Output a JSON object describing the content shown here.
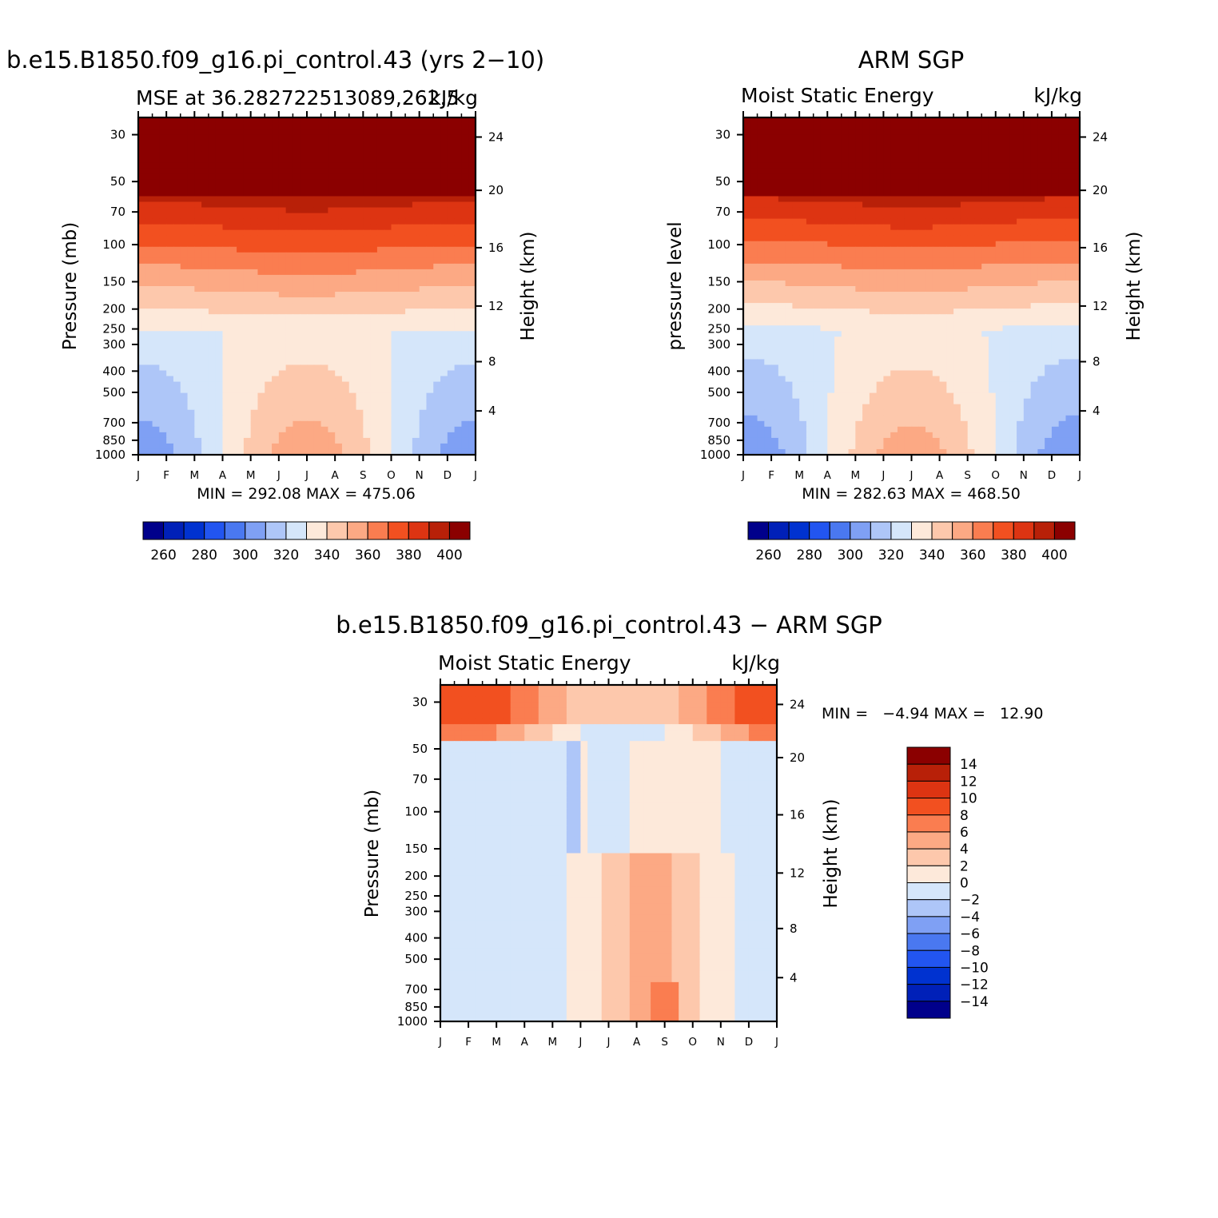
{
  "colors": {
    "mse": [
      "#00008b",
      "#0020b8",
      "#0032d0",
      "#2255f0",
      "#4a78f0",
      "#7fa0f4",
      "#aec6f8",
      "#d5e6fa",
      "#fde9da",
      "#fdc8ac",
      "#fca984",
      "#fa7d50",
      "#f25020",
      "#dd3412",
      "#b82008",
      "#8b0000"
    ],
    "diff": [
      "#00008b",
      "#0020b8",
      "#0032d0",
      "#2255f0",
      "#4a78f0",
      "#7fa0f4",
      "#aec6f8",
      "#d5e6fa",
      "#fde9da",
      "#fdc8ac",
      "#fca984",
      "#fa7d50",
      "#f25020",
      "#dd3412",
      "#b82008",
      "#8b0000"
    ]
  },
  "chart_data": [
    {
      "type": "heatmap",
      "panel": "model",
      "title": "b.e15.B1850.f09_g16.pi_control.43 (yrs 2−10)",
      "subtitle_left": "MSE at 36.282722513089,262.5",
      "subtitle_right": "kJ/kg",
      "ylabel": "Pressure (mb)",
      "ylabel_right": "Height (km)",
      "min_label": "MIN = 292.08 MAX = 475.06",
      "min": 292.08,
      "max": 475.06,
      "x_ticks": [
        "J",
        "F",
        "M",
        "A",
        "M",
        "J",
        "J",
        "A",
        "S",
        "O",
        "N",
        "D",
        "J"
      ],
      "y_ticks": [
        "30",
        "50",
        "70",
        "100",
        "150",
        "200",
        "250",
        "300",
        "400",
        "500",
        "700",
        "850",
        "1000"
      ],
      "y_ticks_right": [
        "24",
        "20",
        "16",
        "12",
        "8",
        "4"
      ],
      "levels": [
        260,
        270,
        280,
        290,
        300,
        310,
        320,
        330,
        340,
        350,
        360,
        370,
        380,
        390,
        400
      ],
      "colorbar_labels": [
        "260",
        "280",
        "300",
        "320",
        "340",
        "360",
        "380",
        "400"
      ]
    },
    {
      "type": "heatmap",
      "panel": "obs",
      "title": "ARM SGP",
      "subtitle_left": "Moist Static Energy",
      "subtitle_right": "kJ/kg",
      "ylabel": "pressure level",
      "ylabel_right": "Height (km)",
      "min_label": "MIN = 282.63 MAX = 468.50",
      "min": 282.63,
      "max": 468.5,
      "x_ticks": [
        "J",
        "F",
        "M",
        "A",
        "M",
        "J",
        "J",
        "A",
        "S",
        "O",
        "N",
        "D",
        "J"
      ],
      "y_ticks": [
        "30",
        "50",
        "70",
        "100",
        "150",
        "200",
        "250",
        "300",
        "400",
        "500",
        "700",
        "850",
        "1000"
      ],
      "y_ticks_right": [
        "24",
        "20",
        "16",
        "12",
        "8",
        "4"
      ],
      "levels": [
        260,
        270,
        280,
        290,
        300,
        310,
        320,
        330,
        340,
        350,
        360,
        370,
        380,
        390,
        400
      ],
      "colorbar_labels": [
        "260",
        "280",
        "300",
        "320",
        "340",
        "360",
        "380",
        "400"
      ]
    },
    {
      "type": "heatmap",
      "panel": "diff",
      "title": "b.e15.B1850.f09_g16.pi_control.43 − ARM SGP",
      "subtitle_left": "Moist Static Energy",
      "subtitle_right": "kJ/kg",
      "ylabel": "Pressure (mb)",
      "ylabel_right": "Height (km)",
      "min_label": "MIN =   −4.94 MAX =   12.90",
      "min": -4.94,
      "max": 12.9,
      "x_ticks": [
        "J",
        "F",
        "M",
        "A",
        "M",
        "J",
        "J",
        "A",
        "S",
        "O",
        "N",
        "D",
        "J"
      ],
      "y_ticks": [
        "30",
        "50",
        "70",
        "100",
        "150",
        "200",
        "250",
        "300",
        "400",
        "500",
        "700",
        "850",
        "1000"
      ],
      "y_ticks_right": [
        "24",
        "20",
        "16",
        "12",
        "8",
        "4"
      ],
      "levels": [
        -14,
        -12,
        -10,
        -8,
        -6,
        -4,
        -2,
        0,
        2,
        4,
        6,
        8,
        10,
        12,
        14
      ],
      "colorbar_labels": [
        "14",
        "12",
        "10",
        "8",
        "6",
        "4",
        "2",
        "0",
        "−2",
        "−4",
        "−6",
        "−8",
        "−10",
        "−12",
        "−14"
      ]
    }
  ]
}
